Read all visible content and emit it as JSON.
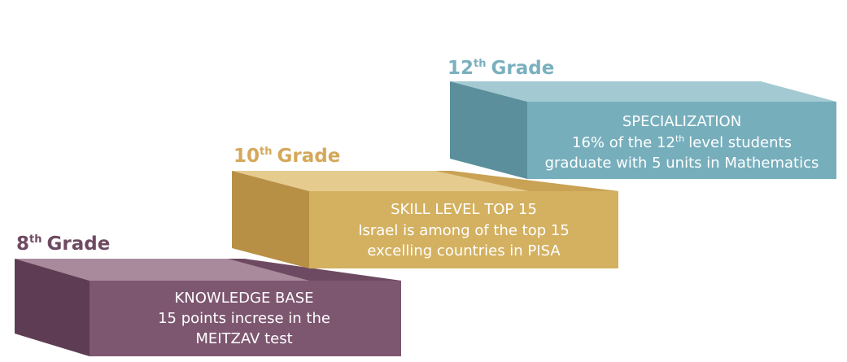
{
  "steps": [
    {
      "grade_number": "8",
      "grade_suffix": "th",
      "grade_word": "Grade",
      "title": "KNOWLEDGE BASE",
      "lines": [
        "15 points increse in the",
        "MEITZAV test"
      ]
    },
    {
      "grade_number": "10",
      "grade_suffix": "th",
      "grade_word": "Grade",
      "title": "SKILL LEVEL TOP 15",
      "lines": [
        "Israel is among of the top 15",
        "excelling countries in PISA"
      ]
    },
    {
      "grade_number": "12",
      "grade_suffix": "th",
      "grade_word": "Grade",
      "title": "SPECIALIZATION",
      "line1_before": "16% of the 12",
      "line1_sup": "th",
      "line1_after": "level students",
      "lines": [
        "graduate with 5 units in Mathematics"
      ]
    }
  ]
}
